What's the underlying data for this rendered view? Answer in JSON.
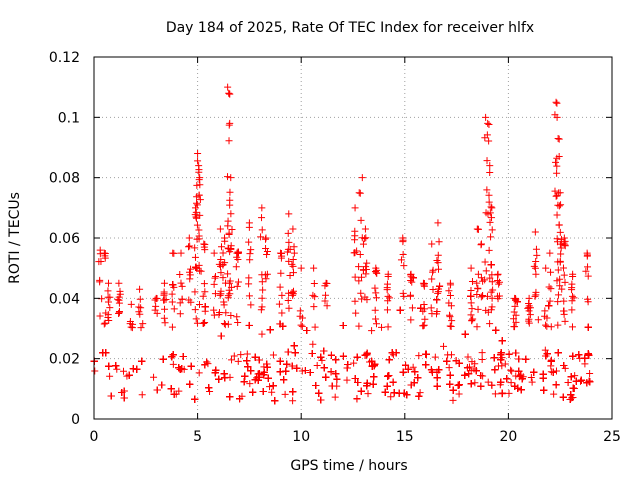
{
  "chart_data": {
    "type": "scatter",
    "title": "Day 184 of 2025, Rate Of TEC Index for receiver hlfx",
    "xlabel": "GPS time / hours",
    "ylabel": "ROTI / TECUs",
    "xlim": [
      0,
      25
    ],
    "ylim": [
      0,
      0.12
    ],
    "xticks": [
      "0",
      "5",
      "10",
      "15",
      "20",
      "25"
    ],
    "yticks": [
      "0",
      "0.02",
      "0.04",
      "0.06",
      "0.08",
      "0.1",
      "0.12"
    ],
    "grid": true,
    "marker": "plus",
    "series": [
      {
        "name": "ROTI",
        "color": "#ff0000",
        "density_profile": {
          "hours": [
            0,
            0.5,
            1,
            1.5,
            2,
            2.5,
            3,
            3.5,
            4,
            4.5,
            5,
            5.5,
            6,
            6.5,
            7,
            7.5,
            8,
            8.5,
            9,
            9.5,
            10,
            10.5,
            11,
            11.5,
            12,
            12.5,
            13,
            13.5,
            14,
            14.5,
            15,
            15.5,
            16,
            16.5,
            17,
            17.5,
            18,
            18.5,
            19,
            19.5,
            20,
            20.5,
            21,
            21.5,
            22,
            22.5,
            23,
            23.5,
            24
          ],
          "typical_max": [
            0.03,
            0.035,
            0.035,
            0.03,
            0.03,
            0.035,
            0.035,
            0.035,
            0.04,
            0.045,
            0.055,
            0.045,
            0.05,
            0.05,
            0.045,
            0.04,
            0.04,
            0.04,
            0.035,
            0.035,
            0.035,
            0.035,
            0.03,
            0.03,
            0.03,
            0.035,
            0.04,
            0.035,
            0.035,
            0.035,
            0.04,
            0.04,
            0.04,
            0.045,
            0.045,
            0.04,
            0.04,
            0.04,
            0.045,
            0.04,
            0.035,
            0.035,
            0.035,
            0.035,
            0.04,
            0.045,
            0.04,
            0.035,
            0.03
          ]
        },
        "peaks": [
          {
            "x": 0.3,
            "y": 0.056
          },
          {
            "x": 0.5,
            "y": 0.055
          },
          {
            "x": 0.7,
            "y": 0.045
          },
          {
            "x": 1.2,
            "y": 0.045
          },
          {
            "x": 1.8,
            "y": 0.038
          },
          {
            "x": 2.2,
            "y": 0.043
          },
          {
            "x": 3.0,
            "y": 0.04
          },
          {
            "x": 3.4,
            "y": 0.045
          },
          {
            "x": 3.8,
            "y": 0.055
          },
          {
            "x": 4.2,
            "y": 0.055
          },
          {
            "x": 4.6,
            "y": 0.06
          },
          {
            "x": 4.9,
            "y": 0.07
          },
          {
            "x": 5.0,
            "y": 0.088
          },
          {
            "x": 5.05,
            "y": 0.084
          },
          {
            "x": 5.1,
            "y": 0.08
          },
          {
            "x": 5.3,
            "y": 0.058
          },
          {
            "x": 5.8,
            "y": 0.055
          },
          {
            "x": 6.1,
            "y": 0.063
          },
          {
            "x": 6.3,
            "y": 0.06
          },
          {
            "x": 6.45,
            "y": 0.11
          },
          {
            "x": 6.5,
            "y": 0.108
          },
          {
            "x": 6.55,
            "y": 0.098
          },
          {
            "x": 6.6,
            "y": 0.08
          },
          {
            "x": 6.9,
            "y": 0.055
          },
          {
            "x": 7.5,
            "y": 0.065
          },
          {
            "x": 8.1,
            "y": 0.07
          },
          {
            "x": 8.3,
            "y": 0.06
          },
          {
            "x": 9.0,
            "y": 0.055
          },
          {
            "x": 9.4,
            "y": 0.068
          },
          {
            "x": 9.6,
            "y": 0.063
          },
          {
            "x": 10.0,
            "y": 0.05
          },
          {
            "x": 10.6,
            "y": 0.05
          },
          {
            "x": 11.2,
            "y": 0.045
          },
          {
            "x": 12.6,
            "y": 0.07
          },
          {
            "x": 12.8,
            "y": 0.075
          },
          {
            "x": 12.95,
            "y": 0.08
          },
          {
            "x": 13.1,
            "y": 0.063
          },
          {
            "x": 13.6,
            "y": 0.05
          },
          {
            "x": 14.2,
            "y": 0.048
          },
          {
            "x": 14.9,
            "y": 0.06
          },
          {
            "x": 15.3,
            "y": 0.048
          },
          {
            "x": 15.9,
            "y": 0.045
          },
          {
            "x": 16.3,
            "y": 0.058
          },
          {
            "x": 16.6,
            "y": 0.065
          },
          {
            "x": 17.2,
            "y": 0.045
          },
          {
            "x": 18.2,
            "y": 0.05
          },
          {
            "x": 18.5,
            "y": 0.063
          },
          {
            "x": 18.7,
            "y": 0.058
          },
          {
            "x": 18.9,
            "y": 0.1
          },
          {
            "x": 19.0,
            "y": 0.098
          },
          {
            "x": 19.1,
            "y": 0.084
          },
          {
            "x": 19.2,
            "y": 0.07
          },
          {
            "x": 19.5,
            "y": 0.048
          },
          {
            "x": 20.3,
            "y": 0.04
          },
          {
            "x": 21.0,
            "y": 0.04
          },
          {
            "x": 21.3,
            "y": 0.062
          },
          {
            "x": 21.8,
            "y": 0.05
          },
          {
            "x": 22.0,
            "y": 0.055
          },
          {
            "x": 22.3,
            "y": 0.105
          },
          {
            "x": 22.35,
            "y": 0.1
          },
          {
            "x": 22.4,
            "y": 0.093
          },
          {
            "x": 22.45,
            "y": 0.087
          },
          {
            "x": 22.5,
            "y": 0.075
          },
          {
            "x": 22.7,
            "y": 0.06
          },
          {
            "x": 23.1,
            "y": 0.048
          },
          {
            "x": 23.8,
            "y": 0.055
          }
        ]
      }
    ]
  }
}
